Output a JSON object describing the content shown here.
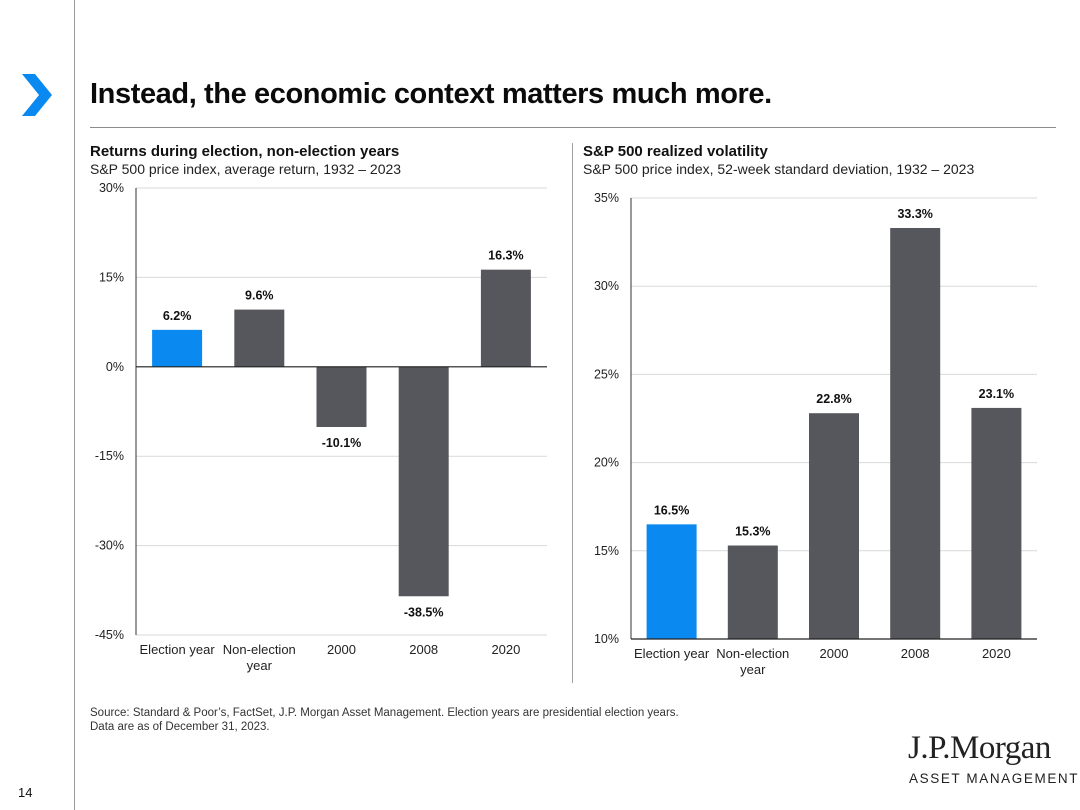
{
  "slide": {
    "title": "Instead, the economic context matters much more.",
    "page_number": "14",
    "source_line1": "Source: Standard & Poor’s, FactSet, J.P. Morgan Asset Management. Election years are presidential election years.",
    "source_line2": "Data are as of December 31, 2023.",
    "logo_main": "J.P.Morgan",
    "logo_sub": "ASSET MANAGEMENT",
    "colors": {
      "highlight": "#0a8af0",
      "bar": "#55575c",
      "chevron": "#0a8af0"
    }
  },
  "chart_data": [
    {
      "type": "bar",
      "title": "Returns during election, non-election years",
      "subtitle": "S&P 500 price index, average return, 1932 – 2023",
      "categories": [
        "Election year",
        "Non-election year",
        "2000",
        "2008",
        "2020"
      ],
      "category_lines": [
        [
          "Election year"
        ],
        [
          "Non-election",
          "year"
        ],
        [
          "2000"
        ],
        [
          "2008"
        ],
        [
          "2020"
        ]
      ],
      "values": [
        6.2,
        9.6,
        -10.1,
        -38.5,
        16.3
      ],
      "value_labels": [
        "6.2%",
        "9.6%",
        "-10.1%",
        "-38.5%",
        "16.3%"
      ],
      "highlight_index": 0,
      "ylim": [
        -45,
        30
      ],
      "yticks": [
        30,
        15,
        0,
        -15,
        -30,
        -45
      ],
      "ytick_labels": [
        "30%",
        "15%",
        "0%",
        "-15%",
        "-30%",
        "-45%"
      ],
      "baseline": 0,
      "grid": true,
      "xlabel": "",
      "ylabel": ""
    },
    {
      "type": "bar",
      "title": "S&P 500 realized volatility",
      "subtitle": "S&P 500 price index, 52-week standard deviation, 1932 – 2023",
      "categories": [
        "Election year",
        "Non-election year",
        "2000",
        "2008",
        "2020"
      ],
      "category_lines": [
        [
          "Election year"
        ],
        [
          "Non-election",
          "year"
        ],
        [
          "2000"
        ],
        [
          "2008"
        ],
        [
          "2020"
        ]
      ],
      "values": [
        16.5,
        15.3,
        22.8,
        33.3,
        23.1
      ],
      "value_labels": [
        "16.5%",
        "15.3%",
        "22.8%",
        "33.3%",
        "23.1%"
      ],
      "highlight_index": 0,
      "ylim": [
        10,
        35
      ],
      "yticks": [
        35,
        30,
        25,
        20,
        15,
        10
      ],
      "ytick_labels": [
        "35%",
        "30%",
        "25%",
        "20%",
        "15%",
        "10%"
      ],
      "baseline": 10,
      "grid": true,
      "xlabel": "",
      "ylabel": ""
    }
  ]
}
